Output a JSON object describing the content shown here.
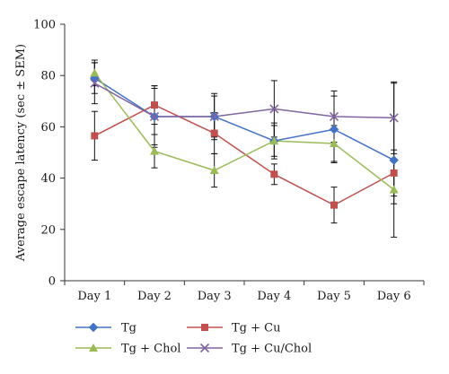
{
  "chart_data": {
    "type": "line",
    "title": "",
    "xlabel": "",
    "ylabel": "Average escape latency (sec ± SEM)",
    "ylim": [
      0,
      100
    ],
    "yticks": [
      0,
      20,
      40,
      60,
      80,
      100
    ],
    "categories": [
      "Day 1",
      "Day 2",
      "Day 3",
      "Day 4",
      "Day 5",
      "Day 6"
    ],
    "grid": false,
    "legend_position": "bottom",
    "series": [
      {
        "name": "Tg",
        "color": "#4472c4",
        "marker": "diamond",
        "values": [
          79,
          64,
          64,
          54.5,
          59,
          47
        ],
        "errors": [
          6,
          11,
          8,
          6,
          13,
          30
        ]
      },
      {
        "name": "Tg + Cu",
        "color": "#c0504d",
        "marker": "square",
        "values": [
          56.5,
          68.5,
          57.5,
          41.5,
          29.5,
          42
        ],
        "errors": [
          9.5,
          7.5,
          8,
          4,
          7,
          9
        ]
      },
      {
        "name": "Tg + Chol",
        "color": "#9bbb59",
        "marker": "triangle",
        "values": [
          81,
          50.5,
          43,
          54.5,
          53.5,
          35.5
        ],
        "errors": [
          5,
          6.5,
          6.5,
          7,
          7,
          5.5
        ]
      },
      {
        "name": "Tg + Cu/Chol",
        "color": "#8064a2",
        "marker": "x",
        "values": [
          77,
          64,
          64,
          67,
          64,
          63.5
        ],
        "errors": [
          8,
          12,
          9,
          11,
          10,
          14
        ]
      }
    ]
  }
}
